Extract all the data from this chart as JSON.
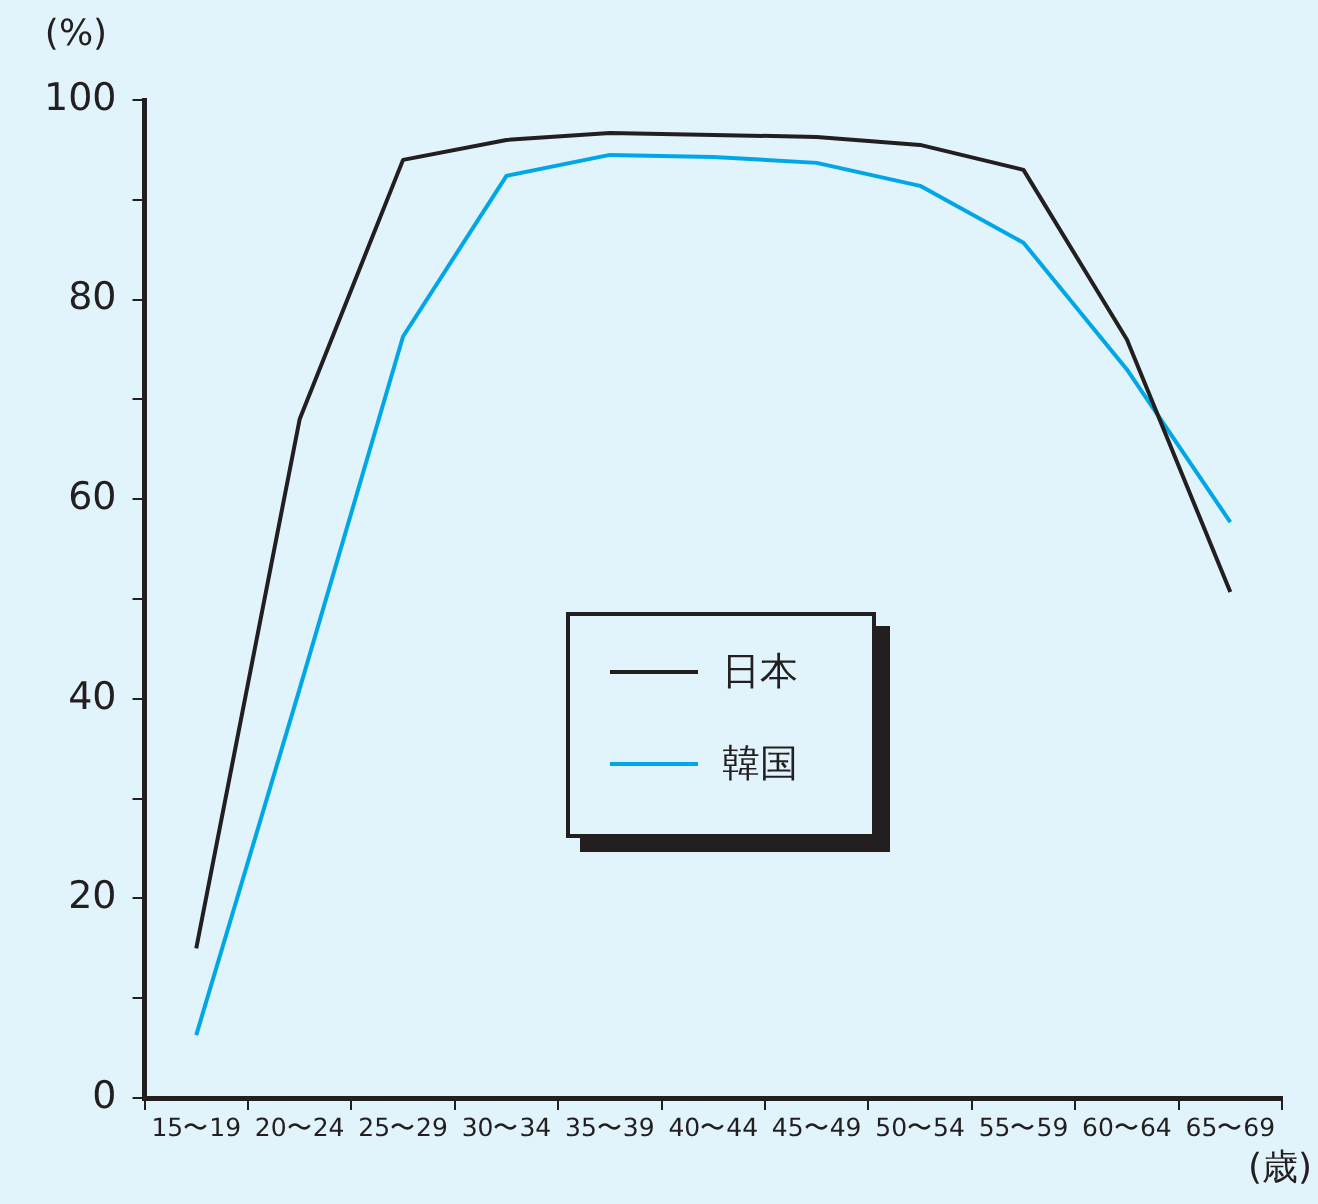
{
  "chart_data": {
    "type": "line",
    "ylabel": "(%)",
    "xlabel": "(歳)",
    "categories": [
      "15〜19",
      "20〜24",
      "25〜29",
      "30〜34",
      "35〜39",
      "40〜44",
      "45〜49",
      "50〜54",
      "55〜59",
      "60〜64",
      "65〜69"
    ],
    "series": [
      {
        "name": "日本",
        "color": "#231f20",
        "values": [
          15,
          68,
          94,
          96,
          96.7,
          96.5,
          96.3,
          95.5,
          93,
          76,
          50.7
        ]
      },
      {
        "name": "韓国",
        "color": "#00a7e6",
        "values": [
          6.3,
          41,
          76.3,
          92.4,
          94.5,
          94.3,
          93.7,
          91.4,
          85.7,
          73,
          57.7
        ]
      }
    ],
    "ylim": [
      0,
      100
    ],
    "yticks": [
      0,
      {
        "value": 10,
        "label": null
      },
      20,
      {
        "value": 30,
        "label": null
      },
      40,
      {
        "value": 50,
        "label": null
      },
      60,
      {
        "value": 70,
        "label": null
      },
      80,
      {
        "value": 90,
        "label": null
      },
      100
    ],
    "grid": false,
    "legend": "center",
    "marker": "none",
    "line_style": "solid"
  }
}
